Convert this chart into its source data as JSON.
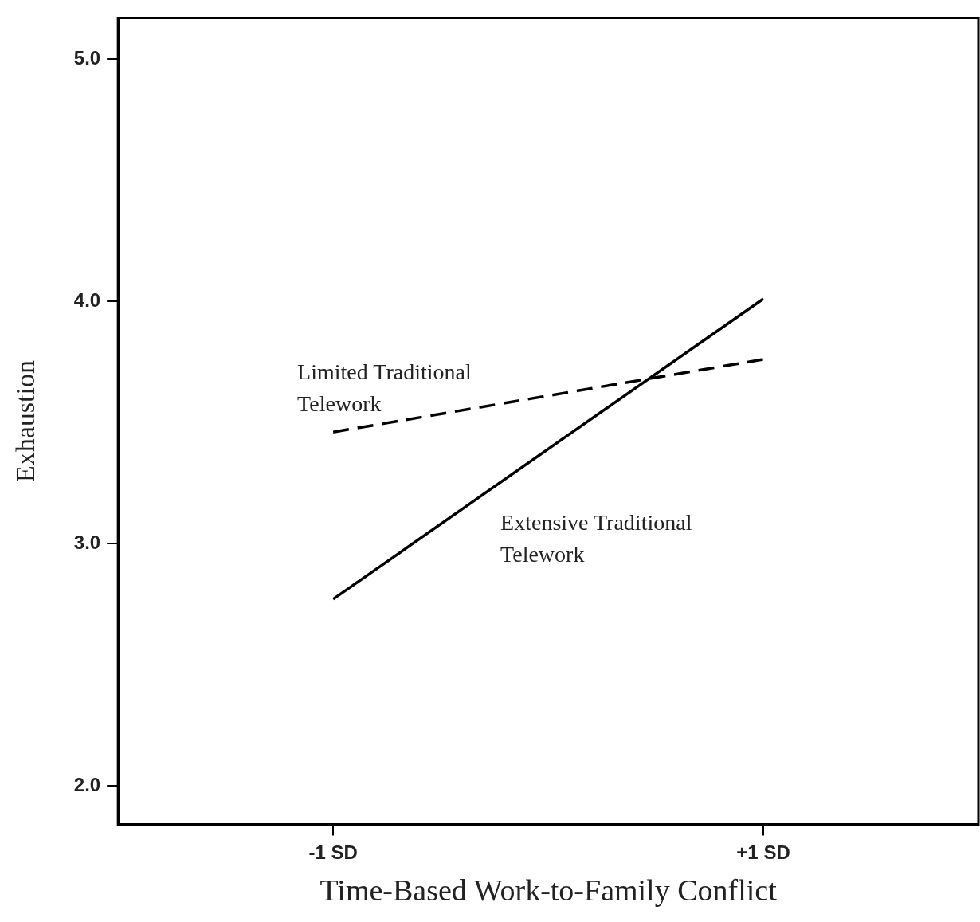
{
  "chart_data": {
    "type": "line",
    "xlabel": "Time-Based Work-to-Family Conflict",
    "ylabel": "Exhaustion",
    "categories": [
      "-1 SD",
      "+1 SD"
    ],
    "series": [
      {
        "name": "Limited Traditional Telework",
        "color": "#000000",
        "values": [
          3.46,
          3.76
        ],
        "line_style": "dashed"
      },
      {
        "name": "Extensive Traditional Telework",
        "color": "#000000",
        "values": [
          2.77,
          4.01
        ],
        "line_style": "solid"
      }
    ],
    "ylim": [
      1.84,
      5.17
    ],
    "yticks": [
      {
        "value": 2,
        "label": "2.0"
      },
      {
        "value": 3,
        "label": "3.0"
      },
      {
        "value": 4,
        "label": "4.0"
      },
      {
        "value": 5,
        "label": "5.0"
      }
    ],
    "grid": false,
    "legend": false,
    "marker": "none"
  }
}
